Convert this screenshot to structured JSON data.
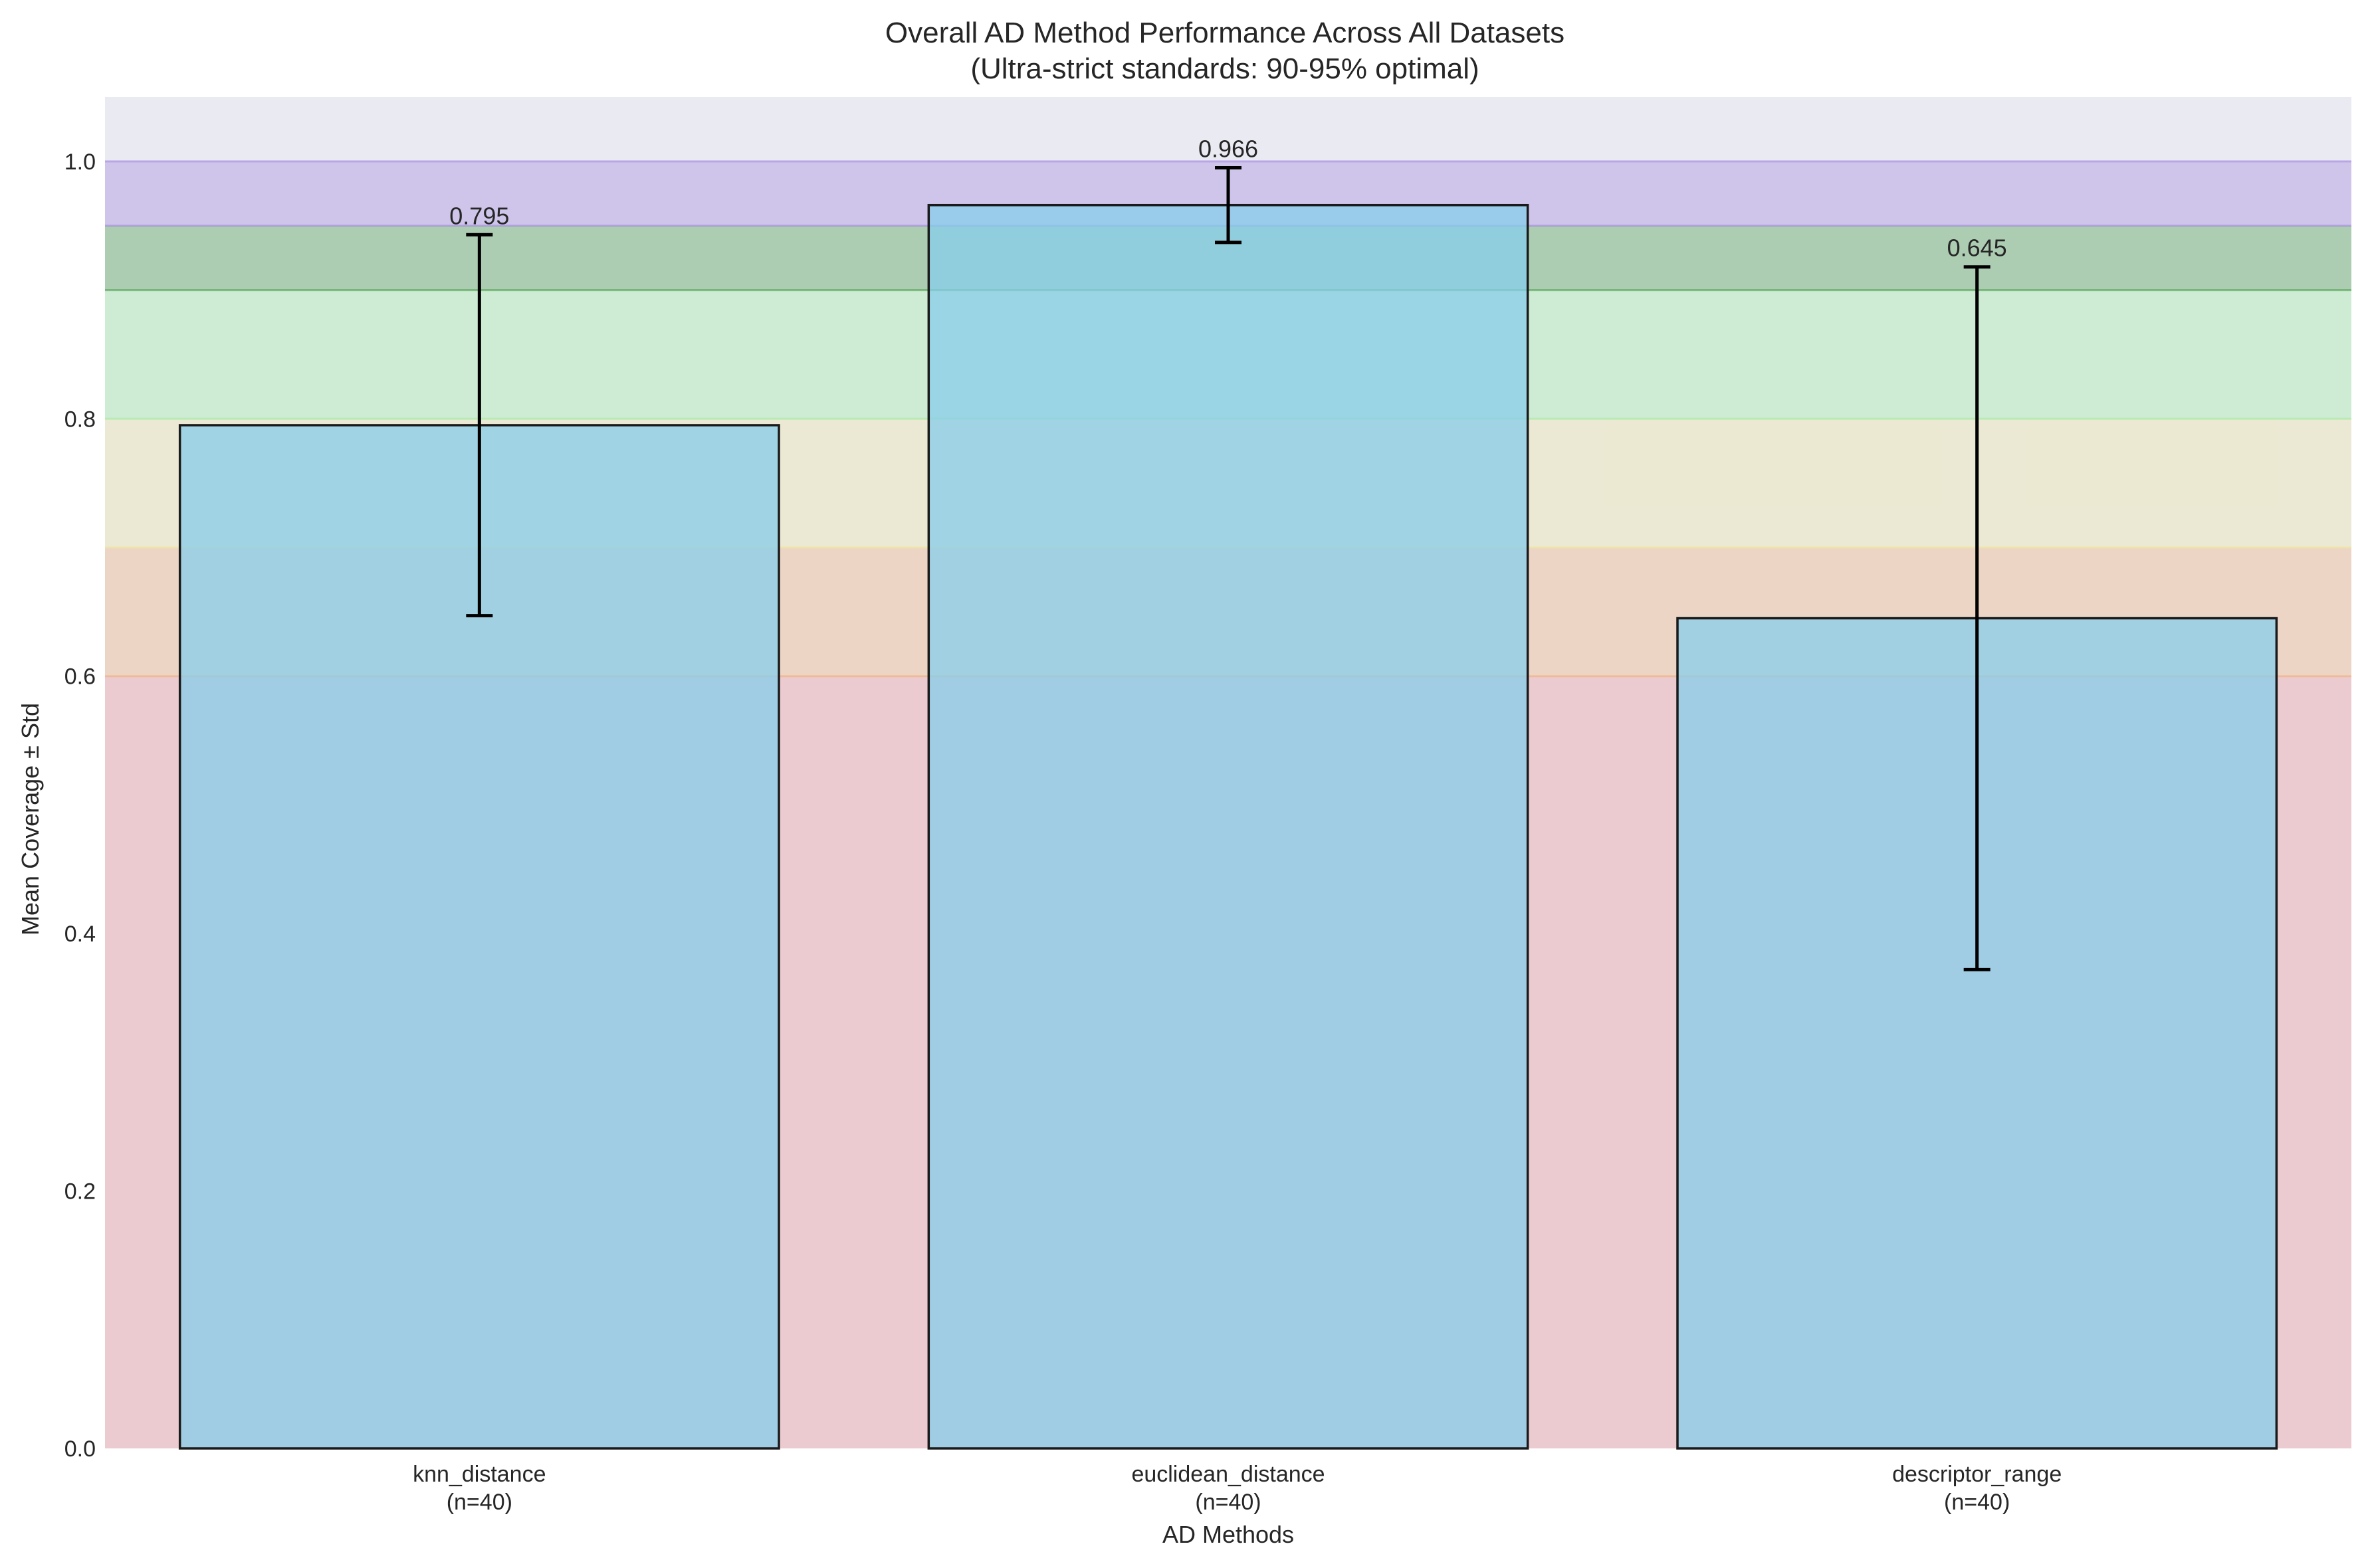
{
  "chart_data": {
    "type": "bar",
    "title": "Overall AD Method Performance Across All Datasets",
    "subtitle": "(Ultra-strict standards: 90-95% optimal)",
    "xlabel": "AD Methods",
    "ylabel": "Mean Coverage ± Std",
    "categories": [
      "knn_distance",
      "euclidean_distance",
      "descriptor_range"
    ],
    "category_sublabels": [
      "(n=40)",
      "(n=40)",
      "(n=40)"
    ],
    "values": [
      0.795,
      0.966,
      0.645
    ],
    "std": [
      0.148,
      0.029,
      0.273
    ],
    "value_labels": [
      "0.795",
      "0.966",
      "0.645"
    ],
    "ylim": [
      0,
      1.05
    ],
    "yticks": [
      0.0,
      0.2,
      0.4,
      0.6,
      0.8,
      1.0
    ],
    "ytick_labels": [
      "0.0",
      "0.2",
      "0.4",
      "0.6",
      "0.8",
      "1.0"
    ],
    "grid": true,
    "bar_color": "#87CEEB",
    "background_color": "#EAEAF2",
    "threshold_bands": [
      {
        "from": 0.0,
        "to": 0.6,
        "color": "#F08080"
      },
      {
        "from": 0.6,
        "to": 0.7,
        "color": "#F4A460"
      },
      {
        "from": 0.7,
        "to": 0.8,
        "color": "#F0E68C"
      },
      {
        "from": 0.8,
        "to": 0.9,
        "color": "#90EE90"
      },
      {
        "from": 0.9,
        "to": 0.95,
        "color": "#228B22"
      },
      {
        "from": 0.95,
        "to": 1.0,
        "color": "#9370DB"
      }
    ]
  }
}
